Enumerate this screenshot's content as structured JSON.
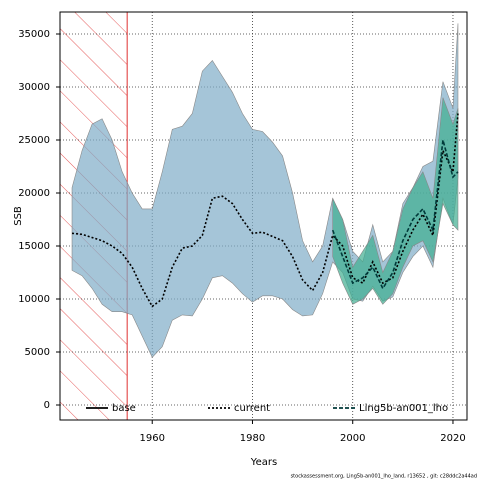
{
  "chart_data": {
    "type": "line",
    "xlabel": "Years",
    "ylabel": "SSB",
    "footer": "stockassessment.org, Ling5b-an001_lho_land, r13652 , git: c28ddc2a44ad",
    "x": [
      1944,
      1946,
      1948,
      1950,
      1952,
      1954,
      1956,
      1958,
      1960,
      1962,
      1964,
      1966,
      1968,
      1970,
      1972,
      1974,
      1976,
      1978,
      1980,
      1982,
      1984,
      1986,
      1988,
      1990,
      1992,
      1994,
      1996,
      1998,
      2000,
      2002,
      2004,
      2006,
      2008,
      2010,
      2012,
      2014,
      2016,
      2018,
      2020,
      2021
    ],
    "series": [
      {
        "name": "base",
        "color": "#000000",
        "style": "solid"
      },
      {
        "name": "current",
        "color": "#000000",
        "style": "dotted",
        "band_color": "#7fadc7",
        "values": [
          16200,
          16100,
          15800,
          15500,
          15000,
          14300,
          13000,
          11000,
          9300,
          10000,
          13000,
          14800,
          15000,
          16000,
          19500,
          19700,
          19000,
          17500,
          16200,
          16300,
          15900,
          15500,
          14000,
          11800,
          10800,
          12500,
          16000,
          15000,
          12000,
          11500,
          13500,
          11500,
          12000,
          14500,
          16500,
          18000,
          16000,
          24000,
          22000,
          27500
        ],
        "lower": [
          12700,
          12200,
          11000,
          9500,
          8800,
          8800,
          8500,
          6500,
          4500,
          5500,
          8000,
          8500,
          8400,
          10000,
          12000,
          12200,
          11500,
          10500,
          9700,
          10300,
          10300,
          10000,
          9000,
          8400,
          8500,
          10500,
          13500,
          12500,
          10000,
          9800,
          11200,
          9800,
          10200,
          12500,
          14000,
          15000,
          13000,
          19500,
          17000,
          21500
        ],
        "upper": [
          20500,
          24000,
          26500,
          27000,
          25000,
          22000,
          20000,
          18500,
          18500,
          22000,
          26000,
          26300,
          27500,
          31500,
          32500,
          31000,
          29500,
          27500,
          26000,
          25800,
          24800,
          23500,
          20000,
          15500,
          13500,
          15000,
          19500,
          17500,
          14500,
          13500,
          17000,
          13500,
          14500,
          19000,
          20500,
          22500,
          23000,
          30500,
          28000,
          36000
        ]
      },
      {
        "name": "Ling5b-an001_lho",
        "color": "#003a3a",
        "style": "dashed",
        "band_color": "#3fae90",
        "values": [
          null,
          null,
          null,
          null,
          null,
          null,
          null,
          null,
          null,
          null,
          null,
          null,
          null,
          null,
          null,
          null,
          null,
          null,
          null,
          null,
          null,
          null,
          null,
          null,
          null,
          null,
          16500,
          14000,
          11500,
          12000,
          13000,
          11000,
          12500,
          15500,
          17500,
          18500,
          16500,
          25000,
          21500,
          22000
        ],
        "lower": [
          null,
          null,
          null,
          null,
          null,
          null,
          null,
          null,
          null,
          null,
          null,
          null,
          null,
          null,
          null,
          null,
          null,
          null,
          null,
          null,
          null,
          null,
          null,
          null,
          null,
          null,
          14000,
          11500,
          9500,
          10000,
          11000,
          9500,
          10500,
          13000,
          15000,
          15500,
          13500,
          19000,
          17000,
          16500
        ],
        "upper": [
          null,
          null,
          null,
          null,
          null,
          null,
          null,
          null,
          null,
          null,
          null,
          null,
          null,
          null,
          null,
          null,
          null,
          null,
          null,
          null,
          null,
          null,
          null,
          null,
          null,
          null,
          19500,
          17500,
          13000,
          14500,
          16000,
          12500,
          14500,
          18500,
          20500,
          22000,
          19500,
          29000,
          26500,
          28000
        ]
      }
    ],
    "hatch_range": [
      1941.6,
      1955
    ],
    "xlim": [
      1941.6,
      2022.8
    ],
    "xticks": [
      1960,
      1980,
      2000,
      2020
    ],
    "ylim": [
      -1415,
      37075
    ],
    "yticks": [
      0,
      5000,
      10000,
      15000,
      20000,
      25000,
      30000,
      35000
    ],
    "grid": true,
    "legend": "bottom"
  }
}
